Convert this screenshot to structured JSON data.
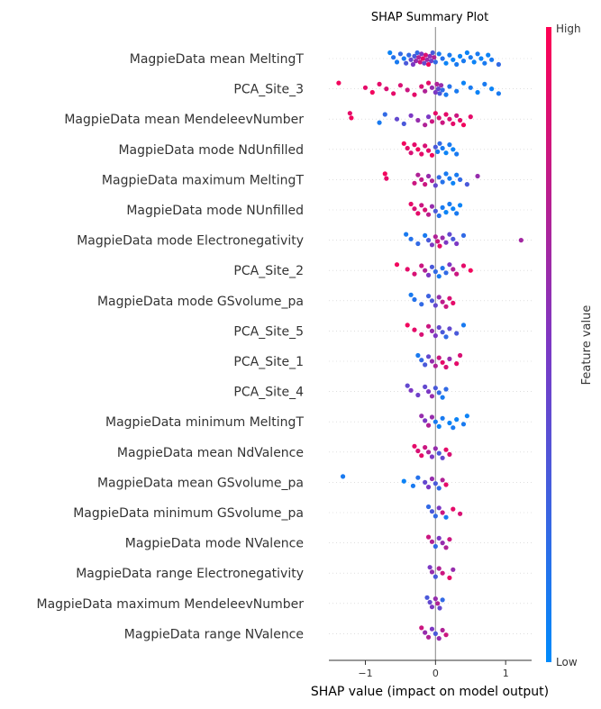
{
  "chart_data": {
    "type": "scatter",
    "subtype": "shap-beeswarm",
    "title": "SHAP Summary Plot",
    "xlabel": "SHAP value (impact on model output)",
    "ylabel": "",
    "xlim": [
      -1.52,
      1.37
    ],
    "xticks": [
      -1,
      0,
      1
    ],
    "xtick_labels": [
      "−1",
      "0",
      "1"
    ],
    "colorbar": {
      "title": "Feature value",
      "high_label": "High",
      "low_label": "Low",
      "low_color": "#008bfb",
      "high_color": "#ff0052"
    },
    "features": [
      {
        "name": "MagpieData mean MeltingT",
        "points": [
          [
            -0.65,
            0.05
          ],
          [
            -0.6,
            0.15
          ],
          [
            -0.55,
            0.1
          ],
          [
            -0.5,
            0.2
          ],
          [
            -0.45,
            0.1
          ],
          [
            -0.42,
            0.3
          ],
          [
            -0.38,
            0.2
          ],
          [
            -0.35,
            0.4
          ],
          [
            -0.32,
            0.5
          ],
          [
            -0.3,
            0.3
          ],
          [
            -0.28,
            0.6
          ],
          [
            -0.26,
            0.2
          ],
          [
            -0.24,
            0.7
          ],
          [
            -0.22,
            0.8
          ],
          [
            -0.2,
            0.5
          ],
          [
            -0.18,
            0.9
          ],
          [
            -0.16,
            0.4
          ],
          [
            -0.14,
            0.85
          ],
          [
            -0.12,
            0.6
          ],
          [
            -0.1,
            0.95
          ],
          [
            -0.08,
            0.55
          ],
          [
            -0.06,
            0.45
          ],
          [
            -0.04,
            0.3
          ],
          [
            -0.02,
            0.7
          ],
          [
            0.0,
            0.2
          ],
          [
            0.05,
            0.1
          ],
          [
            0.1,
            0.15
          ],
          [
            0.15,
            0.05
          ],
          [
            0.2,
            0.1
          ],
          [
            0.25,
            0.05
          ],
          [
            0.3,
            0.1
          ],
          [
            0.35,
            0.05
          ],
          [
            0.4,
            0.1
          ],
          [
            0.45,
            0.05
          ],
          [
            0.5,
            0.1
          ],
          [
            0.55,
            0.05
          ],
          [
            0.6,
            0.1
          ],
          [
            0.65,
            0.05
          ],
          [
            0.7,
            0.1
          ],
          [
            0.75,
            0.05
          ],
          [
            0.8,
            0.1
          ],
          [
            0.9,
            0.2
          ]
        ]
      },
      {
        "name": "PCA_Site_3",
        "points": [
          [
            -1.38,
            0.95
          ],
          [
            -1.0,
            0.9
          ],
          [
            -0.9,
            0.95
          ],
          [
            -0.8,
            0.9
          ],
          [
            -0.7,
            0.85
          ],
          [
            -0.6,
            0.9
          ],
          [
            -0.5,
            0.85
          ],
          [
            -0.4,
            0.8
          ],
          [
            -0.3,
            0.9
          ],
          [
            -0.2,
            0.85
          ],
          [
            -0.15,
            0.7
          ],
          [
            -0.1,
            0.9
          ],
          [
            -0.05,
            0.6
          ],
          [
            0.0,
            0.5
          ],
          [
            0.02,
            0.7
          ],
          [
            0.04,
            0.4
          ],
          [
            0.06,
            0.3
          ],
          [
            0.08,
            0.6
          ],
          [
            0.1,
            0.2
          ],
          [
            0.15,
            0.1
          ],
          [
            0.2,
            0.15
          ],
          [
            0.3,
            0.1
          ],
          [
            0.4,
            0.05
          ],
          [
            0.5,
            0.1
          ],
          [
            0.6,
            0.05
          ],
          [
            0.7,
            0.1
          ],
          [
            0.8,
            0.05
          ],
          [
            0.9,
            0.1
          ]
        ]
      },
      {
        "name": "MagpieData mean MendeleevNumber",
        "points": [
          [
            -1.22,
            0.9
          ],
          [
            -1.2,
            0.95
          ],
          [
            -0.8,
            0.1
          ],
          [
            -0.72,
            0.2
          ],
          [
            -0.55,
            0.4
          ],
          [
            -0.45,
            0.3
          ],
          [
            -0.35,
            0.5
          ],
          [
            -0.25,
            0.6
          ],
          [
            -0.15,
            0.7
          ],
          [
            -0.1,
            0.5
          ],
          [
            -0.05,
            0.8
          ],
          [
            0.0,
            0.9
          ],
          [
            0.05,
            0.85
          ],
          [
            0.1,
            0.8
          ],
          [
            0.15,
            0.9
          ],
          [
            0.2,
            0.85
          ],
          [
            0.25,
            0.9
          ],
          [
            0.3,
            0.8
          ],
          [
            0.35,
            0.9
          ],
          [
            0.4,
            0.95
          ],
          [
            0.5,
            0.9
          ]
        ]
      },
      {
        "name": "MagpieData mode NdUnfilled",
        "points": [
          [
            -0.45,
            0.95
          ],
          [
            -0.4,
            0.9
          ],
          [
            -0.35,
            0.85
          ],
          [
            -0.3,
            0.9
          ],
          [
            -0.25,
            0.95
          ],
          [
            -0.2,
            0.9
          ],
          [
            -0.15,
            0.85
          ],
          [
            -0.1,
            0.9
          ],
          [
            -0.05,
            0.95
          ],
          [
            0.0,
            0.3
          ],
          [
            0.03,
            0.1
          ],
          [
            0.06,
            0.2
          ],
          [
            0.1,
            0.1
          ],
          [
            0.15,
            0.05
          ],
          [
            0.2,
            0.1
          ],
          [
            0.25,
            0.05
          ],
          [
            0.3,
            0.1
          ]
        ]
      },
      {
        "name": "MagpieData maximum MeltingT",
        "points": [
          [
            -0.72,
            0.95
          ],
          [
            -0.7,
            0.9
          ],
          [
            -0.3,
            0.8
          ],
          [
            -0.25,
            0.7
          ],
          [
            -0.2,
            0.75
          ],
          [
            -0.15,
            0.8
          ],
          [
            -0.1,
            0.6
          ],
          [
            -0.05,
            0.7
          ],
          [
            0.0,
            0.4
          ],
          [
            0.05,
            0.2
          ],
          [
            0.1,
            0.15
          ],
          [
            0.15,
            0.1
          ],
          [
            0.2,
            0.1
          ],
          [
            0.25,
            0.05
          ],
          [
            0.3,
            0.1
          ],
          [
            0.35,
            0.2
          ],
          [
            0.45,
            0.3
          ],
          [
            0.6,
            0.6
          ]
        ]
      },
      {
        "name": "MagpieData mode NUnfilled",
        "points": [
          [
            -0.35,
            0.9
          ],
          [
            -0.3,
            0.85
          ],
          [
            -0.25,
            0.9
          ],
          [
            -0.2,
            0.8
          ],
          [
            -0.15,
            0.85
          ],
          [
            -0.1,
            0.75
          ],
          [
            -0.05,
            0.6
          ],
          [
            0.0,
            0.3
          ],
          [
            0.05,
            0.15
          ],
          [
            0.1,
            0.1
          ],
          [
            0.15,
            0.05
          ],
          [
            0.2,
            0.1
          ],
          [
            0.25,
            0.05
          ],
          [
            0.3,
            0.1
          ],
          [
            0.35,
            0.05
          ]
        ]
      },
      {
        "name": "MagpieData mode Electronegativity",
        "points": [
          [
            -0.42,
            0.1
          ],
          [
            -0.35,
            0.15
          ],
          [
            -0.25,
            0.2
          ],
          [
            -0.15,
            0.1
          ],
          [
            -0.1,
            0.3
          ],
          [
            -0.05,
            0.5
          ],
          [
            0.0,
            0.7
          ],
          [
            0.03,
            0.8
          ],
          [
            0.06,
            0.9
          ],
          [
            0.1,
            0.6
          ],
          [
            0.15,
            0.5
          ],
          [
            0.2,
            0.4
          ],
          [
            0.25,
            0.3
          ],
          [
            0.3,
            0.5
          ],
          [
            0.4,
            0.2
          ],
          [
            1.22,
            0.65
          ]
        ]
      },
      {
        "name": "PCA_Site_2",
        "points": [
          [
            -0.55,
            0.95
          ],
          [
            -0.4,
            0.9
          ],
          [
            -0.3,
            0.85
          ],
          [
            -0.2,
            0.8
          ],
          [
            -0.15,
            0.7
          ],
          [
            -0.1,
            0.5
          ],
          [
            -0.05,
            0.3
          ],
          [
            0.0,
            0.2
          ],
          [
            0.05,
            0.1
          ],
          [
            0.1,
            0.15
          ],
          [
            0.15,
            0.2
          ],
          [
            0.2,
            0.5
          ],
          [
            0.25,
            0.7
          ],
          [
            0.3,
            0.8
          ],
          [
            0.4,
            0.9
          ],
          [
            0.5,
            0.95
          ]
        ]
      },
      {
        "name": "MagpieData mode GSvolume_pa",
        "points": [
          [
            -0.35,
            0.1
          ],
          [
            -0.3,
            0.15
          ],
          [
            -0.2,
            0.2
          ],
          [
            -0.1,
            0.25
          ],
          [
            -0.05,
            0.3
          ],
          [
            0.0,
            0.4
          ],
          [
            0.05,
            0.6
          ],
          [
            0.1,
            0.75
          ],
          [
            0.15,
            0.8
          ],
          [
            0.2,
            0.85
          ],
          [
            0.25,
            0.9
          ]
        ]
      },
      {
        "name": "PCA_Site_5",
        "points": [
          [
            -0.4,
            0.95
          ],
          [
            -0.3,
            0.9
          ],
          [
            -0.2,
            0.85
          ],
          [
            -0.1,
            0.8
          ],
          [
            -0.05,
            0.6
          ],
          [
            0.0,
            0.5
          ],
          [
            0.05,
            0.4
          ],
          [
            0.1,
            0.3
          ],
          [
            0.15,
            0.2
          ],
          [
            0.2,
            0.4
          ],
          [
            0.3,
            0.3
          ],
          [
            0.4,
            0.1
          ]
        ]
      },
      {
        "name": "PCA_Site_1",
        "points": [
          [
            -0.25,
            0.1
          ],
          [
            -0.2,
            0.2
          ],
          [
            -0.15,
            0.3
          ],
          [
            -0.1,
            0.4
          ],
          [
            -0.05,
            0.6
          ],
          [
            0.0,
            0.7
          ],
          [
            0.05,
            0.8
          ],
          [
            0.1,
            0.9
          ],
          [
            0.15,
            0.85
          ],
          [
            0.2,
            0.6
          ],
          [
            0.3,
            0.9
          ],
          [
            0.35,
            0.85
          ]
        ]
      },
      {
        "name": "PCA_Site_4",
        "points": [
          [
            -0.4,
            0.4
          ],
          [
            -0.35,
            0.5
          ],
          [
            -0.25,
            0.45
          ],
          [
            -0.15,
            0.4
          ],
          [
            -0.1,
            0.5
          ],
          [
            -0.05,
            0.6
          ],
          [
            0.0,
            0.3
          ],
          [
            0.05,
            0.2
          ],
          [
            0.1,
            0.1
          ],
          [
            0.15,
            0.2
          ]
        ]
      },
      {
        "name": "MagpieData minimum MeltingT",
        "points": [
          [
            -0.2,
            0.6
          ],
          [
            -0.15,
            0.5
          ],
          [
            -0.1,
            0.7
          ],
          [
            -0.05,
            0.6
          ],
          [
            0.0,
            0.1
          ],
          [
            0.05,
            0.05
          ],
          [
            0.1,
            0.1
          ],
          [
            0.2,
            0.05
          ],
          [
            0.25,
            0.1
          ],
          [
            0.3,
            0.05
          ],
          [
            0.4,
            0.1
          ],
          [
            0.45,
            0.05
          ]
        ]
      },
      {
        "name": "MagpieData mean NdValence",
        "points": [
          [
            -0.3,
            0.9
          ],
          [
            -0.25,
            0.85
          ],
          [
            -0.2,
            0.9
          ],
          [
            -0.15,
            0.8
          ],
          [
            -0.1,
            0.7
          ],
          [
            -0.05,
            0.5
          ],
          [
            0.0,
            0.6
          ],
          [
            0.05,
            0.3
          ],
          [
            0.1,
            0.4
          ],
          [
            0.15,
            0.9
          ],
          [
            0.2,
            0.85
          ]
        ]
      },
      {
        "name": "MagpieData mean GSvolume_pa",
        "points": [
          [
            -1.32,
            0.1
          ],
          [
            -0.45,
            0.05
          ],
          [
            -0.32,
            0.1
          ],
          [
            -0.25,
            0.15
          ],
          [
            -0.15,
            0.4
          ],
          [
            -0.1,
            0.5
          ],
          [
            -0.05,
            0.6
          ],
          [
            0.0,
            0.3
          ],
          [
            0.05,
            0.2
          ],
          [
            0.1,
            0.7
          ],
          [
            0.15,
            0.9
          ]
        ]
      },
      {
        "name": "MagpieData minimum GSvolume_pa",
        "points": [
          [
            -0.1,
            0.2
          ],
          [
            -0.05,
            0.3
          ],
          [
            0.0,
            0.2
          ],
          [
            0.05,
            0.5
          ],
          [
            0.1,
            0.8
          ],
          [
            0.15,
            0.1
          ],
          [
            0.25,
            0.9
          ],
          [
            0.35,
            0.85
          ]
        ]
      },
      {
        "name": "MagpieData mode NValence",
        "points": [
          [
            -0.1,
            0.8
          ],
          [
            -0.05,
            0.7
          ],
          [
            0.0,
            0.2
          ],
          [
            0.05,
            0.5
          ],
          [
            0.1,
            0.6
          ],
          [
            0.15,
            0.7
          ],
          [
            0.2,
            0.8
          ]
        ]
      },
      {
        "name": "MagpieData range Electronegativity",
        "points": [
          [
            -0.08,
            0.5
          ],
          [
            -0.05,
            0.6
          ],
          [
            0.0,
            0.3
          ],
          [
            0.05,
            0.7
          ],
          [
            0.1,
            0.8
          ],
          [
            0.2,
            0.9
          ],
          [
            0.25,
            0.6
          ]
        ]
      },
      {
        "name": "MagpieData maximum MendeleevNumber",
        "points": [
          [
            -0.12,
            0.3
          ],
          [
            -0.08,
            0.4
          ],
          [
            -0.05,
            0.5
          ],
          [
            0.0,
            0.6
          ],
          [
            0.03,
            0.7
          ],
          [
            0.06,
            0.4
          ],
          [
            0.1,
            0.2
          ]
        ]
      },
      {
        "name": "MagpieData range NValence",
        "points": [
          [
            -0.2,
            0.8
          ],
          [
            -0.15,
            0.6
          ],
          [
            -0.1,
            0.7
          ],
          [
            -0.05,
            0.5
          ],
          [
            0.0,
            0.3
          ],
          [
            0.05,
            0.6
          ],
          [
            0.1,
            0.7
          ],
          [
            0.15,
            0.8
          ]
        ]
      }
    ]
  }
}
